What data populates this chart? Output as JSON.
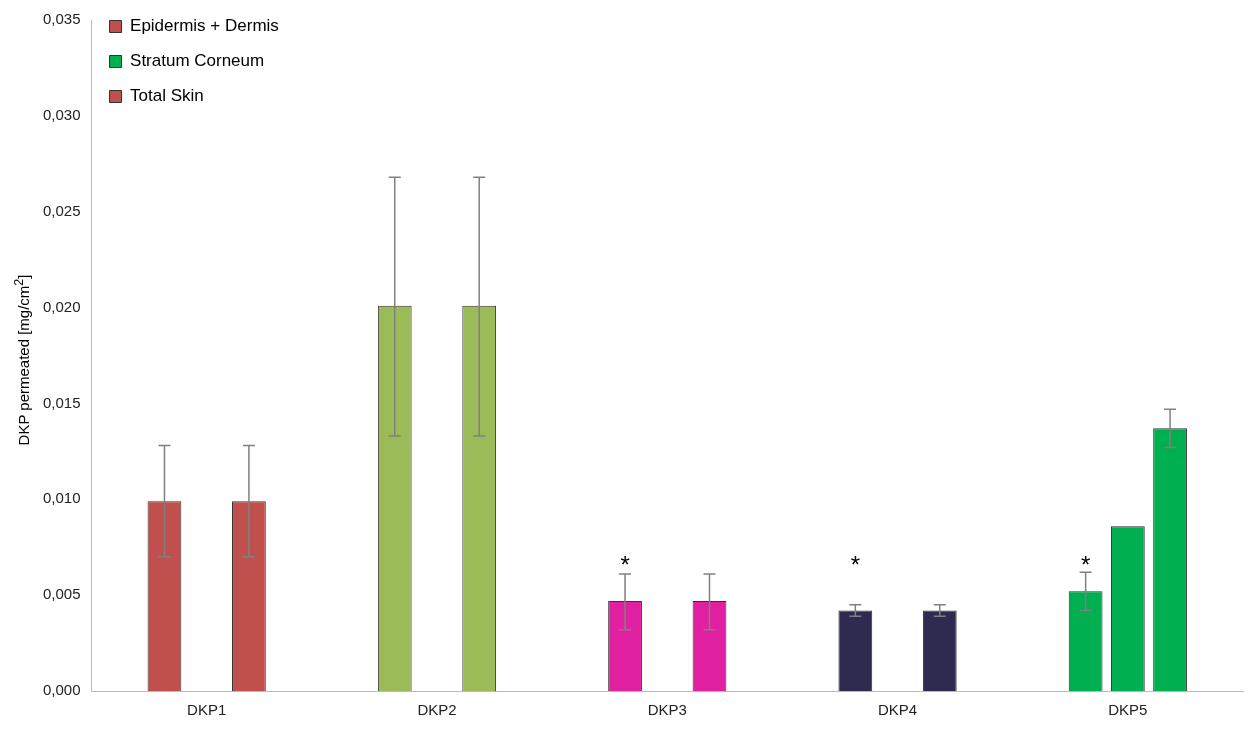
{
  "chart_data": {
    "type": "bar",
    "categories": [
      "DKP1",
      "DKP2",
      "DKP3",
      "DKP4",
      "DKP5"
    ],
    "ylabel": "DKP permeated [mg/cm$^{2}$]",
    "ylim": [
      0,
      0.035
    ],
    "yticks": [
      {
        "value": 0,
        "label": "0,000"
      },
      {
        "value": 0.005,
        "label": "0,005"
      },
      {
        "value": 0.01,
        "label": "0,010"
      },
      {
        "value": 0.015,
        "label": "0,015"
      },
      {
        "value": 0.02,
        "label": "0,020"
      },
      {
        "value": 0.025,
        "label": "0,025"
      },
      {
        "value": 0.03,
        "label": "0,030"
      },
      {
        "value": 0.035,
        "label": "0,035"
      }
    ],
    "grid": false,
    "legend": "top left",
    "series": [
      {
        "name": "Epidermis + Dermis",
        "colors": [
          "#c0504d",
          "#9bbb59",
          "#e020a0",
          "#2e2a50",
          "#00b050"
        ],
        "values": [
          0.0099,
          0.0201,
          0.0047,
          0.0042,
          0.0052
        ],
        "errors": [
          [
            0.007,
            0.0128
          ],
          [
            0.0133,
            0.0268
          ],
          [
            0.0032,
            0.0061
          ],
          [
            0.0039,
            0.0045
          ],
          [
            0.0042,
            0.0062
          ]
        ]
      },
      {
        "name": "Stratum Corneum",
        "colors": [
          null,
          null,
          null,
          null,
          "#00b050"
        ],
        "values": [
          null,
          null,
          null,
          null,
          0.0086
        ]
      },
      {
        "name": "Total Skin",
        "colors": [
          "#c0504d",
          "#9bbb59",
          "#e020a0",
          "#2e2a50",
          "#00b050"
        ],
        "values": [
          0.0099,
          0.0201,
          0.0047,
          0.0042,
          0.0137
        ],
        "errors": [
          [
            0.007,
            0.0128
          ],
          [
            0.0133,
            0.0268
          ],
          [
            0.0032,
            0.0061
          ],
          [
            0.0039,
            0.0045
          ],
          [
            0.0127,
            0.0147
          ]
        ]
      }
    ],
    "annotations": [
      "*",
      "*",
      "*"
    ]
  }
}
